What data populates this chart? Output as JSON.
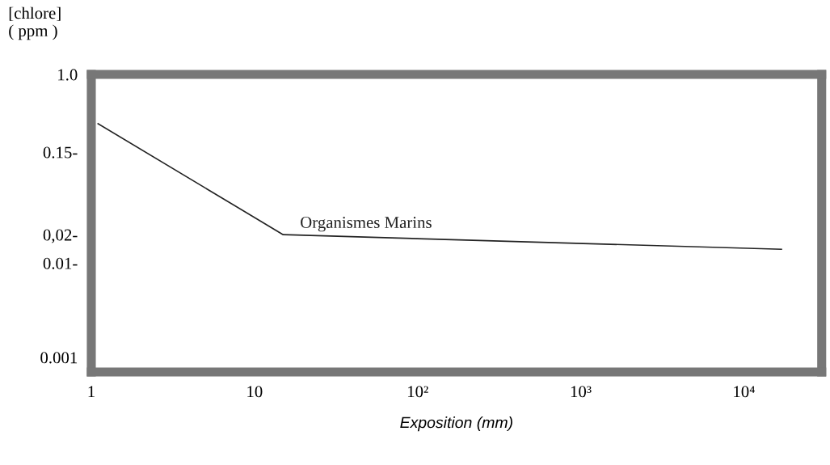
{
  "chart_data": {
    "type": "line",
    "xlabel": "Exposition (mm)",
    "ylabel": "[chlore]\n( ppm )",
    "log": "xy",
    "xlim": [
      1,
      30000
    ],
    "ylim": [
      0.0007,
      1.0
    ],
    "xticks": [
      1,
      10,
      {
        "value": 100,
        "label": "10²"
      },
      {
        "value": 1000,
        "label": "10³"
      },
      {
        "value": 10000,
        "label": "10⁴"
      }
    ],
    "yticks": [
      {
        "value": 1.0,
        "label": "1.0"
      },
      {
        "value": 0.15,
        "label": "0.15-"
      },
      {
        "value": 0.02,
        "label": "0,02-"
      },
      {
        "value": 0.01,
        "label": "0.01-"
      },
      {
        "value": 0.001,
        "label": "0.001"
      }
    ],
    "grid": false,
    "legend": false,
    "series": [
      {
        "name": "Organismes Marins",
        "color": "#222222",
        "x": [
          1.1,
          15,
          17000
        ],
        "values": [
          0.3,
          0.02,
          0.014
        ]
      }
    ]
  }
}
